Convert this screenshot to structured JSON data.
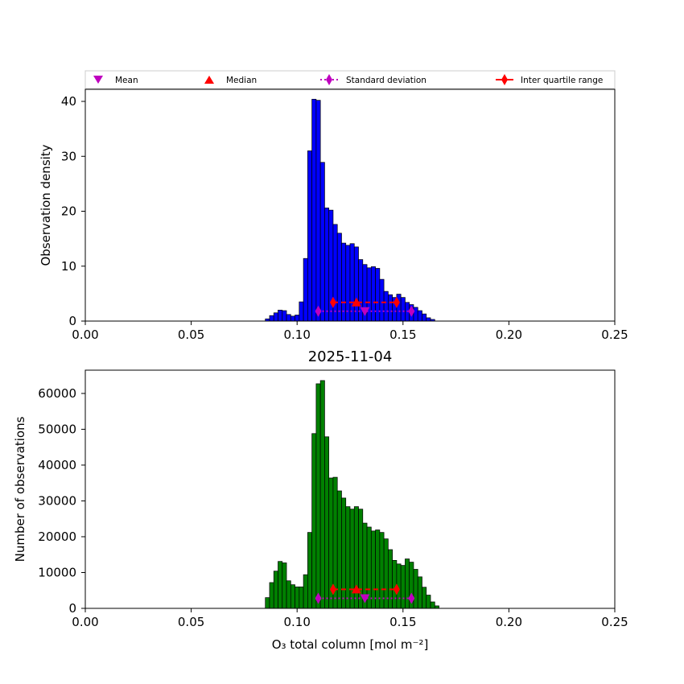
{
  "chart_data": [
    {
      "type": "bar",
      "panel": "top",
      "title": "",
      "xlabel": "",
      "ylabel": "Observation density",
      "xlim": [
        0.0,
        0.25
      ],
      "ylim": [
        0,
        42.2
      ],
      "xticks": [
        "0.00",
        "0.05",
        "0.10",
        "0.15",
        "0.20",
        "0.25"
      ],
      "yticks": [
        "0",
        "10",
        "20",
        "30",
        "40"
      ],
      "bar_color": "#0000ff",
      "bin_start": 0.085,
      "bin_width": 0.002,
      "values": [
        0.4,
        1.0,
        1.5,
        2.0,
        1.9,
        1.2,
        0.9,
        1.1,
        3.5,
        11.4,
        31.0,
        40.4,
        40.2,
        28.9,
        20.6,
        20.2,
        17.6,
        16.0,
        14.2,
        13.8,
        14.1,
        13.5,
        11.2,
        10.3,
        9.7,
        9.9,
        9.6,
        7.6,
        5.4,
        4.8,
        4.3,
        4.9,
        4.3,
        3.4,
        3.0,
        2.5,
        1.9,
        1.3,
        0.6,
        0.3
      ],
      "stats": {
        "mean": {
          "x": 0.132,
          "y": 1.8
        },
        "median": {
          "x": 0.128,
          "y": 3.4
        },
        "std": {
          "x": [
            0.11,
            0.154
          ],
          "y": 1.8
        },
        "iqr": {
          "x": [
            0.117,
            0.147
          ],
          "y": 3.4
        }
      }
    },
    {
      "type": "bar",
      "panel": "bottom",
      "title": "2025-11-04",
      "xlabel": "O₃ total column [mol m⁻²]",
      "ylabel": "Number of observations",
      "xlim": [
        0.0,
        0.25
      ],
      "ylim": [
        0,
        66500
      ],
      "xticks": [
        "0.00",
        "0.05",
        "0.10",
        "0.15",
        "0.20",
        "0.25"
      ],
      "yticks": [
        "0",
        "10000",
        "20000",
        "30000",
        "40000",
        "50000",
        "60000"
      ],
      "bar_color": "#008000",
      "bin_start": 0.085,
      "bin_width": 0.002,
      "values": [
        3000,
        7200,
        10400,
        13100,
        12700,
        7700,
        6600,
        6000,
        6000,
        9400,
        21200,
        48800,
        62700,
        63600,
        47900,
        36400,
        36600,
        32800,
        30800,
        28400,
        27700,
        28400,
        27700,
        23800,
        22700,
        21600,
        21900,
        21200,
        19400,
        16400,
        13400,
        12400,
        12000,
        13800,
        12900,
        10900,
        8800,
        5900,
        3700,
        1800,
        700
      ],
      "stats": {
        "mean": {
          "x": 0.132,
          "y": 2800
        },
        "median": {
          "x": 0.128,
          "y": 5300
        },
        "std": {
          "x": [
            0.11,
            0.154
          ],
          "y": 2800
        },
        "iqr": {
          "x": [
            0.117,
            0.147
          ],
          "y": 5300
        }
      }
    }
  ],
  "legend": {
    "placement": "top",
    "items": [
      {
        "label": "Mean",
        "marker": "triangle-down",
        "color": "#bf00bf"
      },
      {
        "label": "Median",
        "marker": "triangle-up",
        "color": "#ff0000"
      },
      {
        "label": "Standard deviation",
        "marker": "diamond-dotted",
        "color": "#bf00bf"
      },
      {
        "label": "Inter quartile range",
        "marker": "diamond-line",
        "color": "#ff0000"
      }
    ]
  }
}
